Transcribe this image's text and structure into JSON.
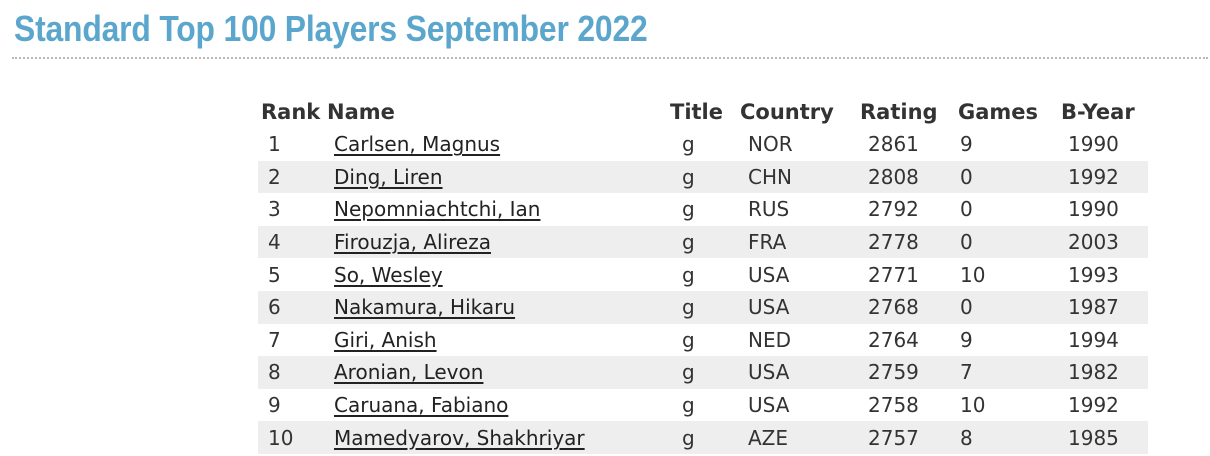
{
  "page": {
    "title": "Standard Top 100 Players September 2022"
  },
  "table": {
    "headers": {
      "rank": "Rank",
      "name": "Name",
      "title": "Title",
      "country": "Country",
      "rating": "Rating",
      "games": "Games",
      "byear": "B-Year"
    },
    "rows": [
      {
        "rank": "1",
        "name": "Carlsen, Magnus",
        "title": "g",
        "country": "NOR",
        "rating": "2861",
        "games": "9",
        "byear": "1990"
      },
      {
        "rank": "2",
        "name": "Ding, Liren",
        "title": "g",
        "country": "CHN",
        "rating": "2808",
        "games": "0",
        "byear": "1992"
      },
      {
        "rank": "3",
        "name": "Nepomniachtchi, Ian",
        "title": "g",
        "country": "RUS",
        "rating": "2792",
        "games": "0",
        "byear": "1990"
      },
      {
        "rank": "4",
        "name": "Firouzja, Alireza",
        "title": "g",
        "country": "FRA",
        "rating": "2778",
        "games": "0",
        "byear": "2003"
      },
      {
        "rank": "5",
        "name": "So, Wesley",
        "title": "g",
        "country": "USA",
        "rating": "2771",
        "games": "10",
        "byear": "1993"
      },
      {
        "rank": "6",
        "name": "Nakamura, Hikaru",
        "title": "g",
        "country": "USA",
        "rating": "2768",
        "games": "0",
        "byear": "1987"
      },
      {
        "rank": "7",
        "name": "Giri, Anish",
        "title": "g",
        "country": "NED",
        "rating": "2764",
        "games": "9",
        "byear": "1994"
      },
      {
        "rank": "8",
        "name": "Aronian, Levon",
        "title": "g",
        "country": "USA",
        "rating": "2759",
        "games": "7",
        "byear": "1982"
      },
      {
        "rank": "9",
        "name": "Caruana, Fabiano",
        "title": "g",
        "country": "USA",
        "rating": "2758",
        "games": "10",
        "byear": "1992"
      },
      {
        "rank": "10",
        "name": "Mamedyarov, Shakhriyar",
        "title": "g",
        "country": "AZE",
        "rating": "2757",
        "games": "8",
        "byear": "1985"
      }
    ]
  },
  "colors": {
    "title": "#5ba6cc",
    "text": "#333333",
    "stripe": "#eeeeee",
    "divider": "#b8b8b8"
  }
}
